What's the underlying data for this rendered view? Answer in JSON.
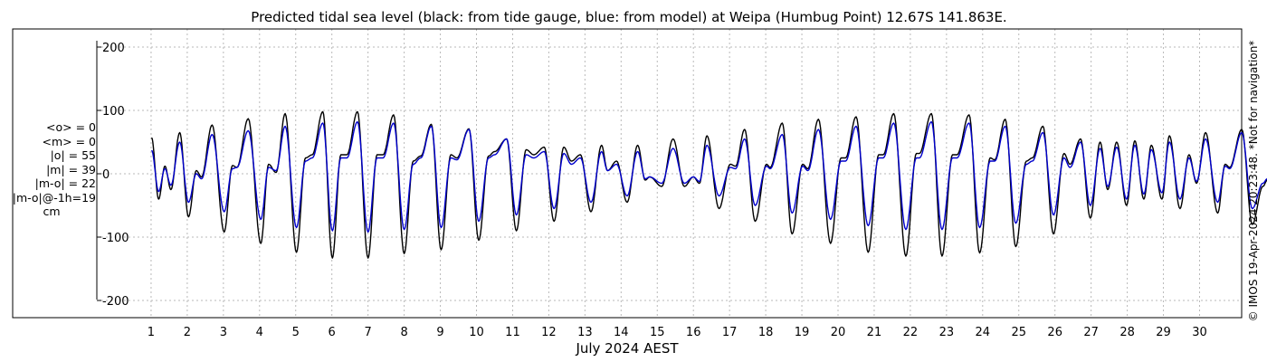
{
  "chart_data": {
    "type": "line",
    "title": "Predicted tidal sea level (black: from tide gauge, blue: from model) at Weipa (Humbug Point) 12.67S 141.863E.",
    "xlabel": "July 2024 AEST",
    "ylabel": "",
    "ylim": [
      -200,
      200
    ],
    "y_ticks": [
      200,
      100,
      0,
      -100,
      -200
    ],
    "x_range_days": [
      0.6,
      31.9
    ],
    "x_ticks": [
      "1",
      "2",
      "3",
      "4",
      "5",
      "6",
      "7",
      "8",
      "9",
      "10",
      "11",
      "12",
      "13",
      "14",
      "15",
      "16",
      "17",
      "18",
      "19",
      "20",
      "21",
      "22",
      "23",
      "24",
      "25",
      "26",
      "27",
      "28",
      "29",
      "30"
    ],
    "grid": true,
    "stats": [
      "<o> = 0",
      "<m> = 0",
      "|o| = 55",
      "|m| = 39",
      "|m-o| = 22",
      "|m-o|@-1h=19",
      "cm"
    ],
    "copyright": "© IMOS 19-Apr-2024 20:23:48. *Not for navigation*",
    "series": [
      {
        "color": "#000000",
        "peaks": [
          [
            "2024-07-01 00:20",
            57
          ],
          [
            "2024-07-01 05:00",
            -40
          ],
          [
            "2024-07-01 09:10",
            12
          ],
          [
            "2024-07-01 13:10",
            -25
          ],
          [
            "2024-07-01 19:00",
            65
          ],
          [
            "2024-07-02 00:50",
            -68
          ],
          [
            "2024-07-02 06:00",
            5
          ],
          [
            "2024-07-02 09:30",
            -5
          ],
          [
            "2024-07-02 16:30",
            77
          ],
          [
            "2024-07-03 00:30",
            -92
          ],
          [
            "2024-07-03 06:00",
            13
          ],
          [
            "2024-07-03 09:00",
            10
          ],
          [
            "2024-07-03 16:30",
            87
          ],
          [
            "2024-07-04 00:50",
            -110
          ],
          [
            "2024-07-04 06:00",
            15
          ],
          [
            "2024-07-04 11:00",
            2
          ],
          [
            "2024-07-04 17:00",
            95
          ],
          [
            "2024-07-05 00:30",
            -124
          ],
          [
            "2024-07-05 06:30",
            25
          ],
          [
            "2024-07-05 11:00",
            30
          ],
          [
            "2024-07-05 18:00",
            98
          ],
          [
            "2024-07-06 00:20",
            -133
          ],
          [
            "2024-07-06 06:00",
            30
          ],
          [
            "2024-07-06 10:00",
            30
          ],
          [
            "2024-07-06 17:00",
            98
          ],
          [
            "2024-07-07 00:00",
            -133
          ],
          [
            "2024-07-07 06:00",
            30
          ],
          [
            "2024-07-07 10:00",
            30
          ],
          [
            "2024-07-07 17:00",
            93
          ],
          [
            "2024-07-08 00:00",
            -126
          ],
          [
            "2024-07-08 06:00",
            20
          ],
          [
            "2024-07-08 11:00",
            28
          ],
          [
            "2024-07-08 18:00",
            78
          ],
          [
            "2024-07-09 00:30",
            -120
          ],
          [
            "2024-07-09 07:00",
            30
          ],
          [
            "2024-07-09 11:00",
            25
          ],
          [
            "2024-07-09 19:00",
            71
          ],
          [
            "2024-07-10 01:30",
            -105
          ],
          [
            "2024-07-10 08:00",
            28
          ],
          [
            "2024-07-10 12:00",
            35
          ],
          [
            "2024-07-10 20:00",
            55
          ],
          [
            "2024-07-11 02:30",
            -90
          ],
          [
            "2024-07-11 09:00",
            38
          ],
          [
            "2024-07-11 14:00",
            30
          ],
          [
            "2024-07-11 21:00",
            42
          ],
          [
            "2024-07-12 03:30",
            -75
          ],
          [
            "2024-07-12 10:00",
            42
          ],
          [
            "2024-07-12 15:00",
            20
          ],
          [
            "2024-07-12 21:00",
            30
          ],
          [
            "2024-07-13 04:00",
            -60
          ],
          [
            "2024-07-13 11:00",
            45
          ],
          [
            "2024-07-13 15:00",
            5
          ],
          [
            "2024-07-13 21:00",
            20
          ],
          [
            "2024-07-14 04:00",
            -45
          ],
          [
            "2024-07-14 11:00",
            45
          ],
          [
            "2024-07-14 16:00",
            -10
          ],
          [
            "2024-07-14 19:00",
            -5
          ],
          [
            "2024-07-15 03:00",
            -20
          ],
          [
            "2024-07-15 10:30",
            55
          ],
          [
            "2024-07-15 18:00",
            -20
          ],
          [
            "2024-07-16 00:00",
            -5
          ],
          [
            "2024-07-16 04:00",
            -15
          ],
          [
            "2024-07-16 09:00",
            60
          ],
          [
            "2024-07-16 17:00",
            -55
          ],
          [
            "2024-07-17 00:30",
            15
          ],
          [
            "2024-07-17 04:00",
            12
          ],
          [
            "2024-07-17 10:00",
            70
          ],
          [
            "2024-07-17 17:00",
            -75
          ],
          [
            "2024-07-18 00:30",
            15
          ],
          [
            "2024-07-18 03:00",
            10
          ],
          [
            "2024-07-18 11:00",
            80
          ],
          [
            "2024-07-18 17:30",
            -95
          ],
          [
            "2024-07-19 00:30",
            15
          ],
          [
            "2024-07-19 04:00",
            8
          ],
          [
            "2024-07-19 11:00",
            86
          ],
          [
            "2024-07-19 19:00",
            -110
          ],
          [
            "2024-07-20 02:00",
            25
          ],
          [
            "2024-07-20 05:00",
            25
          ],
          [
            "2024-07-20 12:00",
            90
          ],
          [
            "2024-07-20 20:00",
            -124
          ],
          [
            "2024-07-21 03:00",
            30
          ],
          [
            "2024-07-21 06:00",
            30
          ],
          [
            "2024-07-21 13:00",
            95
          ],
          [
            "2024-07-21 21:00",
            -130
          ],
          [
            "2024-07-22 04:00",
            32
          ],
          [
            "2024-07-22 06:00",
            32
          ],
          [
            "2024-07-22 14:00",
            95
          ],
          [
            "2024-07-22 21:00",
            -130
          ],
          [
            "2024-07-23 04:00",
            30
          ],
          [
            "2024-07-23 07:00",
            30
          ],
          [
            "2024-07-23 15:00",
            93
          ],
          [
            "2024-07-23 22:00",
            -125
          ],
          [
            "2024-07-24 05:00",
            25
          ],
          [
            "2024-07-24 08:00",
            22
          ],
          [
            "2024-07-24 15:00",
            86
          ],
          [
            "2024-07-24 22:00",
            -115
          ],
          [
            "2024-07-25 05:00",
            20
          ],
          [
            "2024-07-25 09:00",
            25
          ],
          [
            "2024-07-25 16:00",
            75
          ],
          [
            "2024-07-25 23:00",
            -95
          ],
          [
            "2024-07-26 06:00",
            32
          ],
          [
            "2024-07-26 10:00",
            15
          ],
          [
            "2024-07-26 17:00",
            55
          ],
          [
            "2024-07-26 23:30",
            -70
          ],
          [
            "2024-07-27 06:00",
            50
          ],
          [
            "2024-07-27 11:00",
            -25
          ],
          [
            "2024-07-27 17:00",
            50
          ],
          [
            "2024-07-27 23:30",
            -50
          ],
          [
            "2024-07-28 05:00",
            52
          ],
          [
            "2024-07-28 11:00",
            -40
          ],
          [
            "2024-07-28 16:00",
            45
          ],
          [
            "2024-07-28 23:00",
            -40
          ],
          [
            "2024-07-29 04:00",
            60
          ],
          [
            "2024-07-29 11:00",
            -55
          ],
          [
            "2024-07-29 17:00",
            30
          ],
          [
            "2024-07-29 22:00",
            -15
          ],
          [
            "2024-07-30 04:00",
            65
          ],
          [
            "2024-07-30 12:00",
            -62
          ],
          [
            "2024-07-30 17:00",
            15
          ],
          [
            "2024-07-30 20:00",
            10
          ],
          [
            "2024-07-31 04:00",
            70
          ],
          [
            "2024-07-31 11:00",
            -80
          ],
          [
            "2024-07-31 18:00",
            -20
          ],
          [
            "2024-07-31 21:00",
            -10
          ],
          [
            "2024-08-01 00:20",
            50
          ]
        ]
      },
      {
        "color": "#0000cc",
        "peaks": [
          [
            "2024-07-01 00:20",
            37
          ],
          [
            "2024-07-01 05:00",
            -28
          ],
          [
            "2024-07-01 09:10",
            8
          ],
          [
            "2024-07-01 13:10",
            -18
          ],
          [
            "2024-07-01 19:00",
            50
          ],
          [
            "2024-07-02 00:50",
            -45
          ],
          [
            "2024-07-02 06:00",
            0
          ],
          [
            "2024-07-02 09:30",
            -8
          ],
          [
            "2024-07-02 16:30",
            62
          ],
          [
            "2024-07-03 00:30",
            -60
          ],
          [
            "2024-07-03 06:00",
            8
          ],
          [
            "2024-07-03 09:00",
            10
          ],
          [
            "2024-07-03 16:30",
            68
          ],
          [
            "2024-07-04 00:50",
            -72
          ],
          [
            "2024-07-04 06:00",
            10
          ],
          [
            "2024-07-04 11:00",
            5
          ],
          [
            "2024-07-04 17:00",
            75
          ],
          [
            "2024-07-05 00:30",
            -85
          ],
          [
            "2024-07-05 06:30",
            20
          ],
          [
            "2024-07-05 11:00",
            25
          ],
          [
            "2024-07-05 18:00",
            80
          ],
          [
            "2024-07-06 00:20",
            -90
          ],
          [
            "2024-07-06 06:00",
            25
          ],
          [
            "2024-07-06 10:00",
            25
          ],
          [
            "2024-07-06 17:00",
            82
          ],
          [
            "2024-07-07 00:00",
            -92
          ],
          [
            "2024-07-07 06:00",
            25
          ],
          [
            "2024-07-07 10:00",
            25
          ],
          [
            "2024-07-07 17:00",
            80
          ],
          [
            "2024-07-08 00:00",
            -88
          ],
          [
            "2024-07-08 06:00",
            15
          ],
          [
            "2024-07-08 11:00",
            25
          ],
          [
            "2024-07-08 18:00",
            75
          ],
          [
            "2024-07-09 00:30",
            -85
          ],
          [
            "2024-07-09 07:00",
            25
          ],
          [
            "2024-07-09 11:00",
            22
          ],
          [
            "2024-07-09 19:00",
            70
          ],
          [
            "2024-07-10 01:30",
            -75
          ],
          [
            "2024-07-10 08:00",
            25
          ],
          [
            "2024-07-10 12:00",
            30
          ],
          [
            "2024-07-10 20:00",
            55
          ],
          [
            "2024-07-11 02:30",
            -65
          ],
          [
            "2024-07-11 09:00",
            30
          ],
          [
            "2024-07-11 14:00",
            25
          ],
          [
            "2024-07-11 21:00",
            35
          ],
          [
            "2024-07-12 03:30",
            -55
          ],
          [
            "2024-07-12 10:00",
            32
          ],
          [
            "2024-07-12 15:00",
            15
          ],
          [
            "2024-07-12 21:00",
            25
          ],
          [
            "2024-07-13 04:00",
            -45
          ],
          [
            "2024-07-13 11:00",
            35
          ],
          [
            "2024-07-13 15:00",
            5
          ],
          [
            "2024-07-13 21:00",
            15
          ],
          [
            "2024-07-14 04:00",
            -35
          ],
          [
            "2024-07-14 11:00",
            35
          ],
          [
            "2024-07-14 16:00",
            -8
          ],
          [
            "2024-07-14 19:00",
            -5
          ],
          [
            "2024-07-15 03:00",
            -15
          ],
          [
            "2024-07-15 10:30",
            40
          ],
          [
            "2024-07-15 18:00",
            -15
          ],
          [
            "2024-07-16 00:00",
            -5
          ],
          [
            "2024-07-16 04:00",
            -12
          ],
          [
            "2024-07-16 09:00",
            45
          ],
          [
            "2024-07-16 17:00",
            -35
          ],
          [
            "2024-07-17 00:30",
            10
          ],
          [
            "2024-07-17 04:00",
            8
          ],
          [
            "2024-07-17 10:00",
            55
          ],
          [
            "2024-07-17 17:00",
            -50
          ],
          [
            "2024-07-18 00:30",
            12
          ],
          [
            "2024-07-18 03:00",
            8
          ],
          [
            "2024-07-18 11:00",
            62
          ],
          [
            "2024-07-18 17:30",
            -62
          ],
          [
            "2024-07-19 00:30",
            12
          ],
          [
            "2024-07-19 04:00",
            5
          ],
          [
            "2024-07-19 11:00",
            70
          ],
          [
            "2024-07-19 19:00",
            -72
          ],
          [
            "2024-07-20 02:00",
            20
          ],
          [
            "2024-07-20 05:00",
            20
          ],
          [
            "2024-07-20 12:00",
            75
          ],
          [
            "2024-07-20 20:00",
            -82
          ],
          [
            "2024-07-21 03:00",
            25
          ],
          [
            "2024-07-21 06:00",
            25
          ],
          [
            "2024-07-21 13:00",
            80
          ],
          [
            "2024-07-21 21:00",
            -88
          ],
          [
            "2024-07-22 04:00",
            25
          ],
          [
            "2024-07-22 06:00",
            25
          ],
          [
            "2024-07-22 14:00",
            82
          ],
          [
            "2024-07-22 21:00",
            -88
          ],
          [
            "2024-07-23 04:00",
            25
          ],
          [
            "2024-07-23 07:00",
            25
          ],
          [
            "2024-07-23 15:00",
            80
          ],
          [
            "2024-07-23 22:00",
            -85
          ],
          [
            "2024-07-24 05:00",
            20
          ],
          [
            "2024-07-24 08:00",
            20
          ],
          [
            "2024-07-24 15:00",
            75
          ],
          [
            "2024-07-24 22:00",
            -78
          ],
          [
            "2024-07-25 05:00",
            15
          ],
          [
            "2024-07-25 09:00",
            20
          ],
          [
            "2024-07-25 16:00",
            65
          ],
          [
            "2024-07-25 23:00",
            -65
          ],
          [
            "2024-07-26 06:00",
            25
          ],
          [
            "2024-07-26 10:00",
            10
          ],
          [
            "2024-07-26 17:00",
            50
          ],
          [
            "2024-07-26 23:30",
            -50
          ],
          [
            "2024-07-27 06:00",
            40
          ],
          [
            "2024-07-27 11:00",
            -20
          ],
          [
            "2024-07-27 17:00",
            42
          ],
          [
            "2024-07-27 23:30",
            -40
          ],
          [
            "2024-07-28 05:00",
            45
          ],
          [
            "2024-07-28 11:00",
            -32
          ],
          [
            "2024-07-28 16:00",
            38
          ],
          [
            "2024-07-28 23:00",
            -30
          ],
          [
            "2024-07-29 04:00",
            50
          ],
          [
            "2024-07-29 11:00",
            -40
          ],
          [
            "2024-07-29 17:00",
            25
          ],
          [
            "2024-07-29 22:00",
            -12
          ],
          [
            "2024-07-30 04:00",
            55
          ],
          [
            "2024-07-30 12:00",
            -45
          ],
          [
            "2024-07-30 17:00",
            12
          ],
          [
            "2024-07-30 20:00",
            8
          ],
          [
            "2024-07-31 04:00",
            65
          ],
          [
            "2024-07-31 11:00",
            -55
          ],
          [
            "2024-07-31 18:00",
            -15
          ],
          [
            "2024-07-31 21:00",
            -8
          ],
          [
            "2024-08-01 00:20",
            45
          ]
        ]
      }
    ]
  }
}
